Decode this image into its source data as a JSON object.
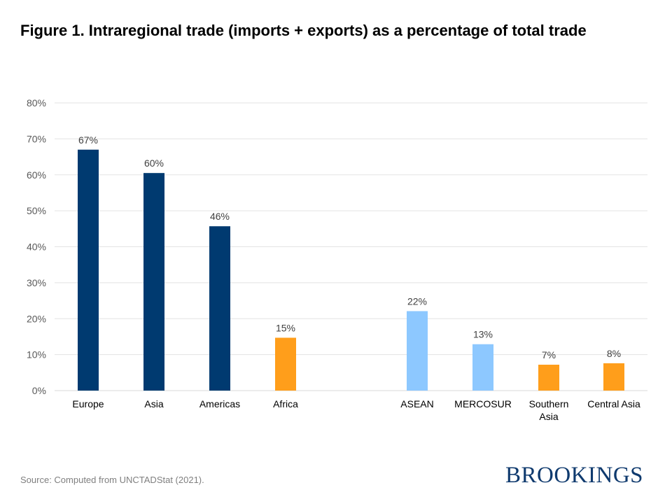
{
  "title": "Figure 1. Intraregional trade (imports + exports) as a percentage of total trade",
  "source": "Source: Computed from UNCTADStat (2021).",
  "logo_text": "BROOKINGS",
  "chart_data": {
    "type": "bar",
    "title": "Figure 1. Intraregional trade (imports + exports) as a percentage of total trade",
    "ylim": [
      0,
      80
    ],
    "yticks": [
      "0%",
      "10%",
      "20%",
      "30%",
      "40%",
      "50%",
      "60%",
      "70%",
      "80%"
    ],
    "grid": true,
    "categories": [
      {
        "label": "Europe",
        "value": 67,
        "data_label": "67%",
        "color": "#003a70"
      },
      {
        "label": "Asia",
        "value": 60.5,
        "data_label": "60%",
        "color": "#003a70"
      },
      {
        "label": "Americas",
        "value": 45.7,
        "data_label": "46%",
        "color": "#003a70"
      },
      {
        "label": "Africa",
        "value": 14.7,
        "data_label": "15%",
        "color": "#ff9e1b"
      },
      {
        "label": "ASEAN",
        "value": 22.1,
        "data_label": "22%",
        "color": "#8dc8ff"
      },
      {
        "label": "MERCOSUR",
        "value": 12.9,
        "data_label": "13%",
        "color": "#8dc8ff"
      },
      {
        "label": "Southern Asia",
        "value": 7.2,
        "data_label": "7%",
        "color": "#ff9e1b"
      },
      {
        "label": "Central Asia",
        "value": 7.6,
        "data_label": "8%",
        "color": "#ff9e1b"
      }
    ]
  }
}
